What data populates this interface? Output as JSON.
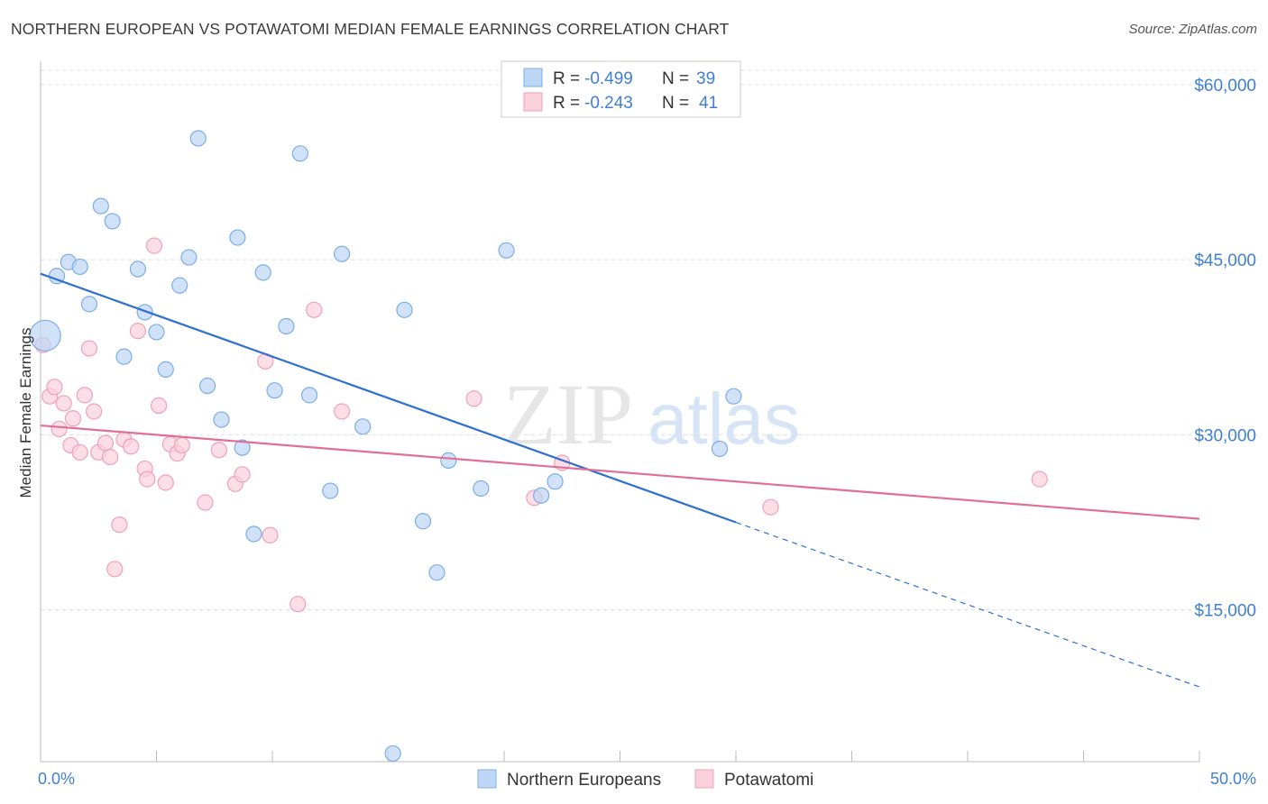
{
  "title": "NORTHERN EUROPEAN VS POTAWATOMI MEDIAN FEMALE EARNINGS CORRELATION CHART",
  "source": "Source: ZipAtlas.com",
  "watermark": {
    "zip": "ZIP",
    "atlas": "atlas"
  },
  "chart_data": {
    "type": "scatter",
    "title": "NORTHERN EUROPEAN VS POTAWATOMI MEDIAN FEMALE EARNINGS CORRELATION CHART",
    "xlabel": "",
    "ylabel": "Median Female Earnings",
    "xlim": [
      0,
      50
    ],
    "ylim": [
      2000,
      62000
    ],
    "x_tick_labels": [
      "0.0%",
      "50.0%"
    ],
    "y_ticks": [
      {
        "value": 15000,
        "label": "$15,000"
      },
      {
        "value": 30000,
        "label": "$30,000"
      },
      {
        "value": 45000,
        "label": "$45,000"
      },
      {
        "value": 60000,
        "label": "$60,000"
      }
    ],
    "legend": [
      {
        "r_label": "R =",
        "r_value": "-0.499",
        "n_label": "N =",
        "n_value": "39"
      },
      {
        "r_label": "R =",
        "r_value": "-0.243",
        "n_label": "N =",
        "n_value": "41"
      }
    ],
    "series": [
      {
        "name": "Northern Europeans",
        "color": "#7aaee8",
        "fill": "#bdd6f5",
        "line_color": "#2e6fd0",
        "trend": {
          "x0": 0,
          "y0": 43800,
          "x1": 30,
          "y1": 22500,
          "dash_to_x": 50,
          "dash_to_y": 8400
        },
        "points": [
          {
            "x": 0.2,
            "y": 38500,
            "big": true
          },
          {
            "x": 0.7,
            "y": 43600
          },
          {
            "x": 1.2,
            "y": 44800
          },
          {
            "x": 1.7,
            "y": 44400
          },
          {
            "x": 2.1,
            "y": 41200
          },
          {
            "x": 2.6,
            "y": 49600
          },
          {
            "x": 3.1,
            "y": 48300
          },
          {
            "x": 3.6,
            "y": 36700
          },
          {
            "x": 4.2,
            "y": 44200
          },
          {
            "x": 4.5,
            "y": 40500
          },
          {
            "x": 5.0,
            "y": 38800
          },
          {
            "x": 5.4,
            "y": 35600
          },
          {
            "x": 6.0,
            "y": 42800
          },
          {
            "x": 6.4,
            "y": 45200
          },
          {
            "x": 6.8,
            "y": 55400
          },
          {
            "x": 7.2,
            "y": 34200
          },
          {
            "x": 7.8,
            "y": 31300
          },
          {
            "x": 8.5,
            "y": 46900
          },
          {
            "x": 8.7,
            "y": 28900
          },
          {
            "x": 9.2,
            "y": 21500
          },
          {
            "x": 9.6,
            "y": 43900
          },
          {
            "x": 10.1,
            "y": 33800
          },
          {
            "x": 10.6,
            "y": 39300
          },
          {
            "x": 11.2,
            "y": 54100
          },
          {
            "x": 11.6,
            "y": 33400
          },
          {
            "x": 12.5,
            "y": 25200
          },
          {
            "x": 13.0,
            "y": 45500
          },
          {
            "x": 13.9,
            "y": 30700
          },
          {
            "x": 15.7,
            "y": 40700
          },
          {
            "x": 16.5,
            "y": 22600
          },
          {
            "x": 17.1,
            "y": 18200
          },
          {
            "x": 17.6,
            "y": 27800
          },
          {
            "x": 19.0,
            "y": 25400
          },
          {
            "x": 20.1,
            "y": 45800
          },
          {
            "x": 21.6,
            "y": 24800
          },
          {
            "x": 22.2,
            "y": 26000
          },
          {
            "x": 29.3,
            "y": 28800
          },
          {
            "x": 29.9,
            "y": 33300
          },
          {
            "x": 15.2,
            "y": 2700
          }
        ]
      },
      {
        "name": "Potawatomi",
        "color": "#f0a0b8",
        "fill": "#f9d0dc",
        "line_color": "#e06f98",
        "trend": {
          "x0": 0,
          "y0": 30800,
          "x1": 50,
          "y1": 22800
        },
        "points": [
          {
            "x": 0.1,
            "y": 37700
          },
          {
            "x": 0.4,
            "y": 33300
          },
          {
            "x": 0.6,
            "y": 34100
          },
          {
            "x": 0.8,
            "y": 30500
          },
          {
            "x": 1.0,
            "y": 32700
          },
          {
            "x": 1.3,
            "y": 29100
          },
          {
            "x": 1.4,
            "y": 31400
          },
          {
            "x": 1.7,
            "y": 28500
          },
          {
            "x": 1.9,
            "y": 33400
          },
          {
            "x": 2.1,
            "y": 37400
          },
          {
            "x": 2.3,
            "y": 32000
          },
          {
            "x": 2.5,
            "y": 28500
          },
          {
            "x": 2.8,
            "y": 29300
          },
          {
            "x": 3.0,
            "y": 28100
          },
          {
            "x": 3.2,
            "y": 18500
          },
          {
            "x": 3.4,
            "y": 22300
          },
          {
            "x": 3.6,
            "y": 29600
          },
          {
            "x": 3.9,
            "y": 29000
          },
          {
            "x": 4.2,
            "y": 38900
          },
          {
            "x": 4.5,
            "y": 27100
          },
          {
            "x": 4.6,
            "y": 26200
          },
          {
            "x": 4.9,
            "y": 46200
          },
          {
            "x": 5.1,
            "y": 32500
          },
          {
            "x": 5.4,
            "y": 25900
          },
          {
            "x": 5.6,
            "y": 29200
          },
          {
            "x": 5.9,
            "y": 28400
          },
          {
            "x": 6.1,
            "y": 29100
          },
          {
            "x": 7.1,
            "y": 24200
          },
          {
            "x": 7.7,
            "y": 28700
          },
          {
            "x": 8.4,
            "y": 25800
          },
          {
            "x": 8.7,
            "y": 26600
          },
          {
            "x": 9.7,
            "y": 36300
          },
          {
            "x": 9.9,
            "y": 21400
          },
          {
            "x": 11.1,
            "y": 15500
          },
          {
            "x": 11.8,
            "y": 40700
          },
          {
            "x": 13.0,
            "y": 32000
          },
          {
            "x": 18.7,
            "y": 33100
          },
          {
            "x": 21.3,
            "y": 24600
          },
          {
            "x": 22.5,
            "y": 27600
          },
          {
            "x": 31.5,
            "y": 23800
          },
          {
            "x": 43.1,
            "y": 26200
          }
        ]
      }
    ]
  }
}
